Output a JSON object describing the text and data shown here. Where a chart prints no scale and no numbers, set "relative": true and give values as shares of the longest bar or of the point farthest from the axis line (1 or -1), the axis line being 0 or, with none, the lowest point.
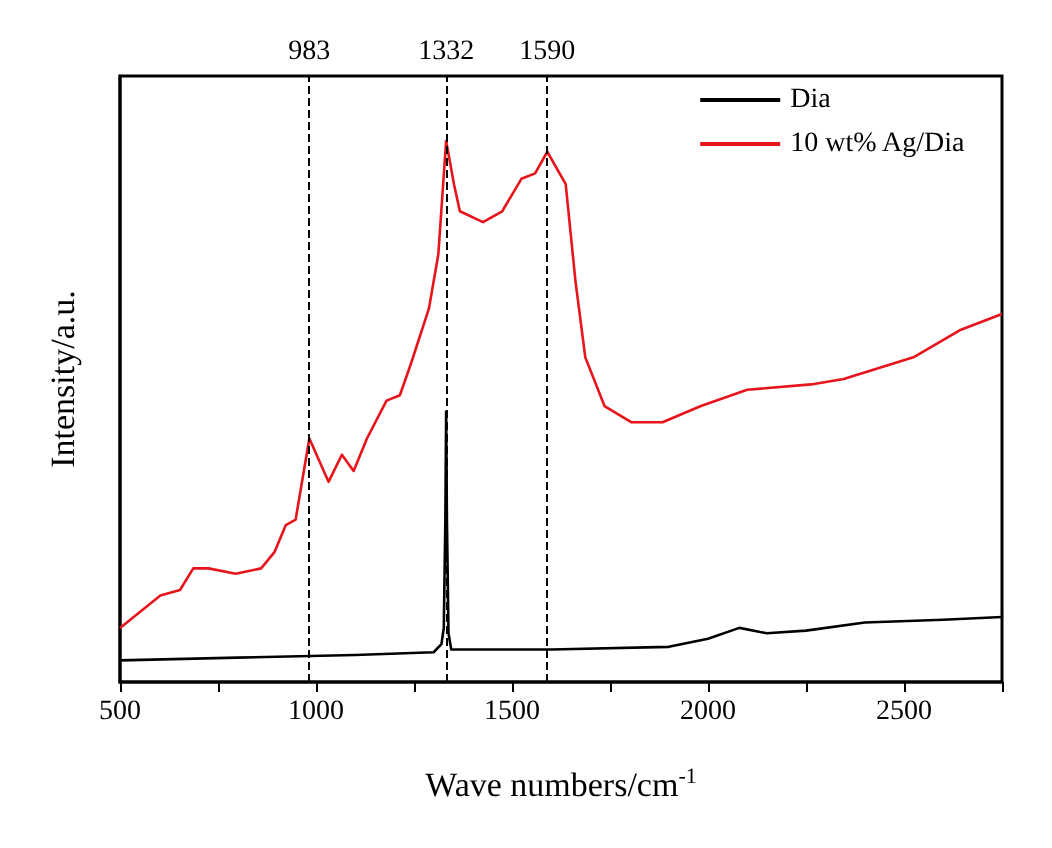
{
  "chart_data": {
    "type": "line",
    "xlabel": "Wave numbers/cm$^{-1}$",
    "ylabel": "Intensity/a.u.",
    "relative": true,
    "xlim": [
      500,
      2750
    ],
    "xticks": [
      500,
      {
        "value": 750,
        "label": null
      },
      1000,
      {
        "value": 1250,
        "label": null
      },
      1500,
      {
        "value": 1750,
        "label": null
      },
      2000,
      {
        "value": 2250,
        "label": null
      },
      2500,
      {
        "value": 2750,
        "label": null
      }
    ],
    "tick_labels": "x",
    "legend": "top right",
    "grid": false,
    "marker": "none",
    "line_style": "solid",
    "series": [
      {
        "name": "Dia",
        "color": "#000000",
        "x": [
          500,
          800,
          1100,
          1300,
          1320,
          1326,
          1330,
          1332,
          1334,
          1338,
          1345,
          1400,
          1600,
          1900,
          2000,
          2080,
          2150,
          2250,
          2400,
          2600,
          2750
        ],
        "values": [
          0.04,
          0.045,
          0.05,
          0.055,
          0.07,
          0.1,
          0.3,
          0.5,
          0.3,
          0.09,
          0.06,
          0.06,
          0.06,
          0.065,
          0.08,
          0.1,
          0.09,
          0.095,
          0.11,
          0.115,
          0.12
        ]
      },
      {
        "name": "10 wt% Ag/Dia",
        "color": "#e8141c",
        "x": [
          500,
          603,
          653,
          687,
          726,
          795,
          860,
          894,
          923,
          948,
          983,
          1032,
          1066,
          1096,
          1130,
          1180,
          1214,
          1243,
          1288,
          1312,
          1332,
          1352,
          1367,
          1426,
          1475,
          1524,
          1559,
          1590,
          1637,
          1662,
          1687,
          1736,
          1805,
          1884,
          1982,
          2100,
          2263,
          2346,
          2524,
          2642,
          2750
        ],
        "values": [
          0.1,
          0.16,
          0.17,
          0.21,
          0.21,
          0.2,
          0.21,
          0.24,
          0.29,
          0.3,
          0.45,
          0.37,
          0.42,
          0.39,
          0.45,
          0.52,
          0.53,
          0.59,
          0.69,
          0.79,
          1.0,
          0.92,
          0.87,
          0.85,
          0.87,
          0.93,
          0.94,
          0.98,
          0.92,
          0.74,
          0.6,
          0.51,
          0.48,
          0.48,
          0.51,
          0.54,
          0.55,
          0.56,
          0.6,
          0.65,
          0.68
        ]
      }
    ],
    "ref_lines": [
      {
        "axis": "x",
        "value": 983,
        "label": "983",
        "line_style": "dashed"
      },
      {
        "axis": "x",
        "value": 1332,
        "label": "1332",
        "line_style": "dashed"
      },
      {
        "axis": "x",
        "value": 1590,
        "label": "1590",
        "line_style": "dashed"
      }
    ]
  }
}
